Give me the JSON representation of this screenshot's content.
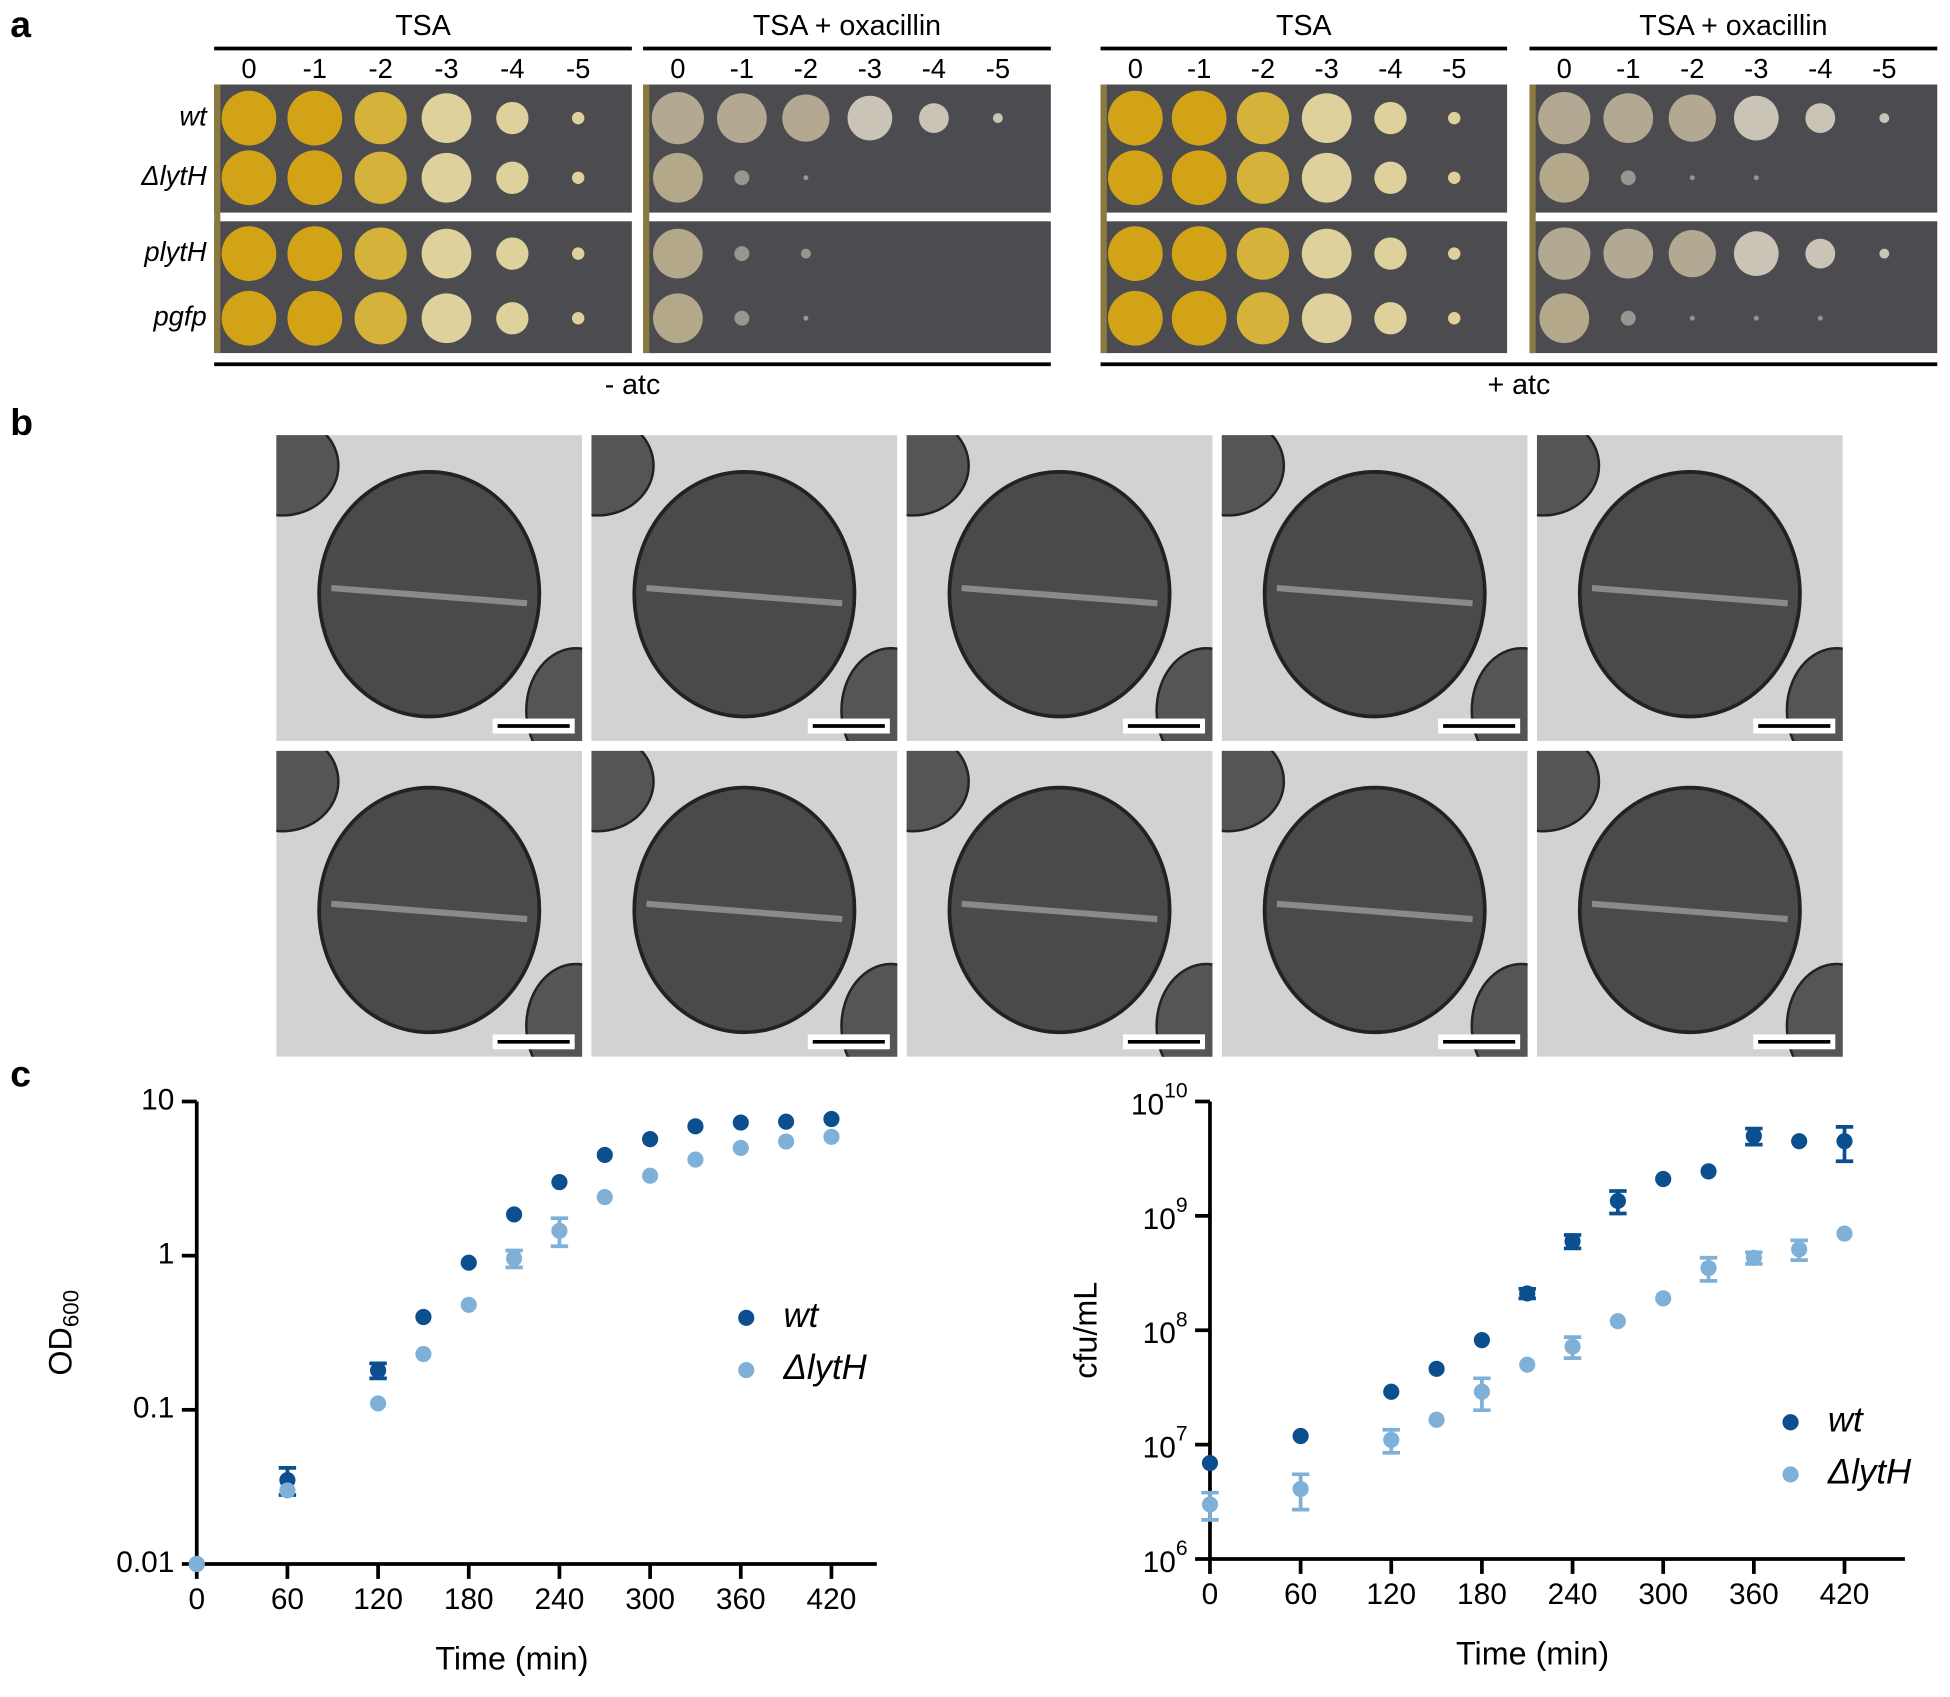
{
  "panel_labels": [
    "a",
    "b",
    "c"
  ],
  "spot_assay": {
    "media": [
      "TSA",
      "TSA + oxacillin"
    ],
    "conditions": [
      "- atc",
      "+ atc"
    ],
    "dilutions": [
      "0",
      "-1",
      "-2",
      "-3",
      "-4",
      "-5"
    ],
    "strains": [
      "wt",
      "ΔlytH",
      "plytH",
      "pgfp"
    ]
  },
  "chart_data": [
    {
      "type": "scatter",
      "xlabel": "Time (min)",
      "ylabel": "OD_600",
      "ylog": true,
      "xlim": [
        0,
        450
      ],
      "ylim": [
        0.01,
        10
      ],
      "xticks": [
        0,
        60,
        120,
        180,
        240,
        300,
        360,
        420
      ],
      "yticks": [
        0.01,
        0.1,
        1,
        10
      ],
      "legend": "center right",
      "x": [
        0,
        60,
        120,
        150,
        180,
        210,
        240,
        270,
        300,
        330,
        360,
        390,
        420
      ],
      "series": [
        {
          "name": "wt",
          "color": "#0b4f8f",
          "values": [
            0.01,
            0.035,
            0.18,
            0.4,
            0.9,
            1.85,
            3.0,
            4.5,
            5.7,
            6.9,
            7.3,
            7.4,
            7.7
          ],
          "errors": [
            null,
            0.007,
            0.02,
            null,
            null,
            null,
            null,
            null,
            null,
            null,
            null,
            null,
            null
          ]
        },
        {
          "name": "ΔlytH",
          "color": "#7fb0d8",
          "values": [
            0.01,
            0.03,
            0.11,
            0.23,
            0.48,
            0.96,
            1.45,
            2.4,
            3.3,
            4.2,
            5.0,
            5.5,
            5.9
          ],
          "errors": [
            null,
            null,
            null,
            null,
            null,
            0.12,
            0.3,
            null,
            null,
            null,
            null,
            null,
            null
          ]
        }
      ]
    },
    {
      "type": "scatter",
      "xlabel": "Time (min)",
      "ylabel": "cfu/mL",
      "ylog": true,
      "xlim": [
        0,
        460
      ],
      "ylim": [
        1000000,
        10000000000
      ],
      "xticks": [
        0,
        60,
        120,
        180,
        240,
        300,
        360,
        420
      ],
      "yticks": [
        {
          "value": 1000000,
          "label": "10^6"
        },
        {
          "value": 10000000,
          "label": "10^7"
        },
        {
          "value": 100000000,
          "label": "10^8"
        },
        {
          "value": 1000000000,
          "label": "10^9"
        },
        {
          "value": 10000000000,
          "label": "10^10"
        }
      ],
      "legend": "lower right",
      "x": [
        0,
        60,
        120,
        150,
        180,
        210,
        240,
        270,
        300,
        330,
        360,
        390,
        420
      ],
      "series": [
        {
          "name": "wt",
          "color": "#0b4f8f",
          "values": [
            6900000,
            11900000,
            29000000,
            46000000,
            82000000,
            210000000,
            600000000,
            1350000000,
            2100000000,
            2450000000,
            5000000000,
            4500000000,
            4500000000
          ],
          "errors": [
            null,
            null,
            null,
            null,
            null,
            20000000,
            80000000,
            300000000,
            null,
            null,
            800000000,
            null,
            1500000000
          ]
        },
        {
          "name": "ΔlytH",
          "color": "#7fb0d8",
          "values": [
            3000000,
            4100000,
            11000000,
            16500000,
            29000000,
            50000000,
            72000000,
            120000000,
            190000000,
            350000000,
            430000000,
            510000000,
            700000000
          ],
          "errors": [
            800000,
            1400000,
            2500000,
            null,
            9000000,
            null,
            15000000,
            null,
            null,
            80000000,
            50000000,
            100000000,
            null
          ]
        }
      ]
    }
  ]
}
